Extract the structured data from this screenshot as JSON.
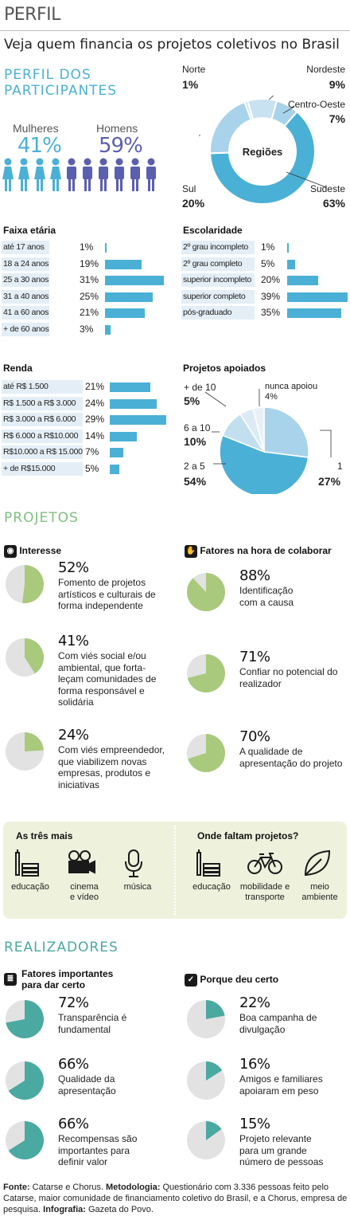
{
  "header": {
    "kicker": "PERFIL",
    "subtitle": "Veja quem financia os projetos coletivos no Brasil"
  },
  "colors": {
    "blue": "#4bb0d5",
    "light_blue": "#a9d3ea",
    "pale_blue": "#d2e6f3",
    "green": "#a9c97c",
    "teal": "#4aa9a0",
    "grey": "#e2e2e2",
    "panel": "#eef2dd"
  },
  "participants": {
    "title": "PERFIL DOS PARTICIPANTES",
    "women_label": "Mulheres",
    "women_pct": "41%",
    "men_label": "Homens",
    "men_pct": "59%"
  },
  "regions": {
    "center_label": "Regiões",
    "items": [
      {
        "name": "Norte",
        "pct": "1%",
        "value": 1
      },
      {
        "name": "Nordeste",
        "pct": "9%",
        "value": 9
      },
      {
        "name": "Centro-Oeste",
        "pct": "7%",
        "value": 7
      },
      {
        "name": "Sudeste",
        "pct": "63%",
        "value": 63
      },
      {
        "name": "Sul",
        "pct": "20%",
        "value": 20
      }
    ]
  },
  "faixa": {
    "title": "Faixa etária",
    "rows": [
      {
        "label": "até 17 anos",
        "pct": "1%",
        "value": 1
      },
      {
        "label": "18 a 24 anos",
        "pct": "19%",
        "value": 19
      },
      {
        "label": "25 a 30 anos",
        "pct": "31%",
        "value": 31
      },
      {
        "label": "31 a 40 anos",
        "pct": "25%",
        "value": 25
      },
      {
        "label": "41 a 60 anos",
        "pct": "21%",
        "value": 21
      },
      {
        "label": "+ de 60 anos",
        "pct": "3%",
        "value": 3
      }
    ]
  },
  "escolaridade": {
    "title": "Escolaridade",
    "rows": [
      {
        "label": "2º grau incompleto",
        "pct": "1%",
        "value": 1
      },
      {
        "label": "2º grau completo",
        "pct": "5%",
        "value": 5
      },
      {
        "label": "superior incompleto",
        "pct": "20%",
        "value": 20
      },
      {
        "label": "superior completo",
        "pct": "39%",
        "value": 39
      },
      {
        "label": "pós-graduado",
        "pct": "35%",
        "value": 35
      }
    ]
  },
  "renda": {
    "title": "Renda",
    "rows": [
      {
        "label": "até R$ 1.500",
        "pct": "21%",
        "value": 21
      },
      {
        "label": "R$ 1.500 a R$ 3.000",
        "pct": "24%",
        "value": 24
      },
      {
        "label": "R$ 3.000 a R$ 6.000",
        "pct": "29%",
        "value": 29
      },
      {
        "label": "R$ 6.000 a R$10.000",
        "pct": "14%",
        "value": 14
      },
      {
        "label": "R$10.000 a R$ 15.000",
        "pct": "7%",
        "value": 7
      },
      {
        "label": "+ de R$15.000",
        "pct": "5%",
        "value": 5
      }
    ]
  },
  "apoiados": {
    "title": "Projetos apoiados",
    "items": [
      {
        "name": "1",
        "pct": "27%",
        "value": 27
      },
      {
        "name": "2 a 5",
        "pct": "54%",
        "value": 54
      },
      {
        "name": "6 a 10",
        "pct": "10%",
        "value": 10
      },
      {
        "name": "+ de 10",
        "pct": "5%",
        "value": 5
      },
      {
        "name": "nunca apoiou",
        "pct": "4%",
        "value": 4
      }
    ]
  },
  "projetos": {
    "title": "PROJETOS",
    "interesse": {
      "title": "Interesse",
      "items": [
        {
          "pct": "52%",
          "value": 52,
          "lines": [
            "Fomento de projetos",
            "artísticos e culturais de",
            "forma independente"
          ]
        },
        {
          "pct": "41%",
          "value": 41,
          "lines": [
            "Com viés social e/ou",
            "ambiental, que forta-",
            "leçam comunidades de",
            "forma responsável e",
            "solidária"
          ]
        },
        {
          "pct": "24%",
          "value": 24,
          "lines": [
            "Com viés empreendedor,",
            "que viabilizem novas",
            "empresas, produtos e",
            "iniciativas"
          ]
        }
      ]
    },
    "fatores": {
      "title": "Fatores na hora de colaborar",
      "items": [
        {
          "pct": "88%",
          "value": 88,
          "lines": [
            "Identificação",
            "com a causa"
          ]
        },
        {
          "pct": "71%",
          "value": 71,
          "lines": [
            "Confiar no potencial do",
            "realizador"
          ]
        },
        {
          "pct": "70%",
          "value": 70,
          "lines": [
            "A qualidade de",
            "apresentação do projeto"
          ]
        }
      ]
    },
    "tres_mais": {
      "title": "As três mais",
      "items": [
        {
          "icon": "books-icon",
          "lines": [
            "educação"
          ]
        },
        {
          "icon": "film-camera-icon",
          "lines": [
            "cinema",
            "e vídeo"
          ]
        },
        {
          "icon": "microphone-icon",
          "lines": [
            "música"
          ]
        }
      ]
    },
    "faltam": {
      "title": "Onde faltam projetos?",
      "items": [
        {
          "icon": "books-icon",
          "lines": [
            "educação"
          ]
        },
        {
          "icon": "bicycle-icon",
          "lines": [
            "mobilidade e",
            "transporte"
          ]
        },
        {
          "icon": "leaf-icon",
          "lines": [
            "meio",
            "ambiente"
          ]
        }
      ]
    }
  },
  "realizadores": {
    "title": "REALIZADORES",
    "fatores": {
      "title_lines": [
        "Fatores importantes",
        "para dar certo"
      ],
      "items": [
        {
          "pct": "72%",
          "value": 72,
          "lines": [
            "Transparência é",
            "fundamental"
          ]
        },
        {
          "pct": "66%",
          "value": 66,
          "lines": [
            "Qualidade da",
            "apresentação"
          ]
        },
        {
          "pct": "66%",
          "value": 66,
          "lines": [
            "Recompensas são",
            "importantes para",
            "definir valor"
          ]
        }
      ]
    },
    "porque": {
      "title": "Porque deu certo",
      "items": [
        {
          "pct": "22%",
          "value": 22,
          "lines": [
            "Boa campanha de",
            "divulgação"
          ]
        },
        {
          "pct": "16%",
          "value": 16,
          "lines": [
            "Amigos e familiares",
            "apoiaram em peso"
          ]
        },
        {
          "pct": "15%",
          "value": 15,
          "lines": [
            "Projeto relevante",
            "para um grande",
            "número de pessoas"
          ]
        }
      ]
    }
  },
  "footer": {
    "fonte_label": "Fonte:",
    "fonte_text": "Catarse e Chorus.",
    "metodologia_label": "Metodologia:",
    "metodologia_text": "Questionário com 3.336 pessoas feito pelo Catarse, maior comunidade de financiamento coletivo do Brasil, e a Chorus, empresa de pesquisa.",
    "infografia_label": "Infografia:",
    "infografia_text": "Gazeta do Povo."
  }
}
